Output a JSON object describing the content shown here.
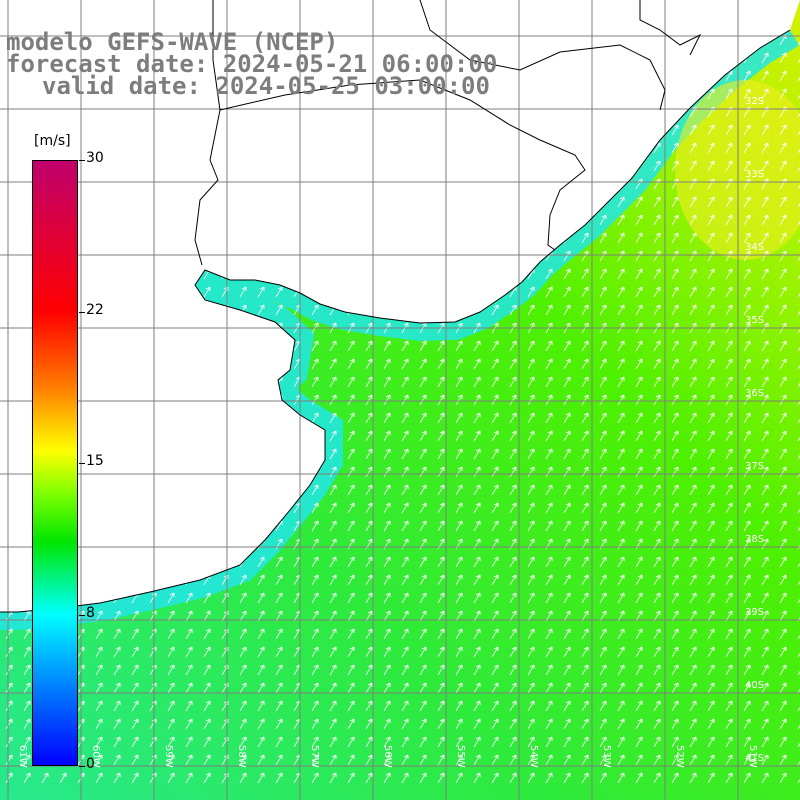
{
  "title": {
    "line1": "modelo GEFS-WAVE (NCEP)",
    "line2": "forecast date: 2024-05-21 06:00:00",
    "line3": "valid date: 2024-05-25 03:00:00"
  },
  "colorbar": {
    "unit": "[m/s]",
    "ticks": [
      "30",
      "22",
      "15",
      "8",
      "0"
    ]
  },
  "lat_labels": [
    "32S",
    "33S",
    "34S",
    "35S",
    "36S",
    "37S",
    "38S",
    "39S",
    "40S",
    "41S"
  ],
  "lon_labels": [
    "61W",
    "60W",
    "59W",
    "58W",
    "57W",
    "56W",
    "55W",
    "54W",
    "53W",
    "52W",
    "51W"
  ],
  "colors": {
    "land": "#ffffff",
    "grid": "#7f7f7f",
    "arrows": "#ffffff"
  }
}
